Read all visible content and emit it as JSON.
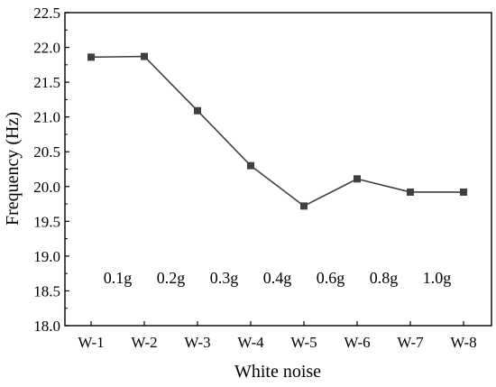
{
  "chart_data": {
    "type": "line",
    "title": "",
    "xlabel": "White noise",
    "ylabel": "Frequency (Hz)",
    "categories": [
      "W-1",
      "W-2",
      "W-3",
      "W-4",
      "W-5",
      "W-6",
      "W-7",
      "W-8"
    ],
    "series": [
      {
        "values": [
          21.86,
          21.87,
          21.09,
          20.3,
          19.72,
          20.11,
          19.92,
          19.92
        ],
        "color": "#404040",
        "marker": "square"
      }
    ],
    "ylim": [
      18.0,
      22.5
    ],
    "yticks": [
      "18.0",
      "18.5",
      "19.0",
      "19.5",
      "20.0",
      "20.5",
      "21.0",
      "21.5",
      "22.0",
      "22.5"
    ],
    "annotations": [
      "0.1g",
      "0.2g",
      "0.3g",
      "0.4g",
      "0.6g",
      "0.8g",
      "1.0g"
    ],
    "grid": false,
    "legend": "none"
  }
}
